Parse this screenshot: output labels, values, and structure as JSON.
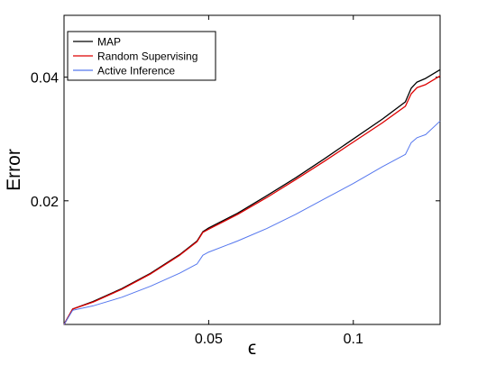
{
  "chart_data": {
    "type": "line",
    "title": "",
    "xlabel": "ϵ",
    "ylabel": "Error",
    "xlim": [
      0,
      0.13
    ],
    "ylim": [
      0,
      0.05
    ],
    "xticks": [
      0.05,
      0.1
    ],
    "xtick_labels": [
      "0.05",
      "0.1"
    ],
    "yticks": [
      0.02,
      0.04
    ],
    "ytick_labels": [
      "0.02",
      "0.04"
    ],
    "grid": false,
    "legend_placement": "top-left",
    "series": [
      {
        "name": "MAP",
        "color": "#000000",
        "x": [
          0,
          0.003,
          0.01,
          0.02,
          0.03,
          0.04,
          0.046,
          0.048,
          0.05,
          0.06,
          0.07,
          0.08,
          0.09,
          0.1,
          0.11,
          0.118,
          0.12,
          0.122,
          0.125,
          0.13
        ],
        "y": [
          0,
          0.0025,
          0.0037,
          0.0058,
          0.0083,
          0.0113,
          0.0135,
          0.015,
          0.0156,
          0.018,
          0.0208,
          0.0237,
          0.0268,
          0.03,
          0.0332,
          0.036,
          0.0382,
          0.0392,
          0.0398,
          0.0412
        ]
      },
      {
        "name": "Random Supervising",
        "color": "#dd0000",
        "x": [
          0,
          0.003,
          0.01,
          0.02,
          0.03,
          0.04,
          0.046,
          0.048,
          0.05,
          0.06,
          0.07,
          0.08,
          0.09,
          0.1,
          0.11,
          0.118,
          0.12,
          0.122,
          0.125,
          0.13
        ],
        "y": [
          0,
          0.0025,
          0.0036,
          0.0057,
          0.0082,
          0.0112,
          0.0134,
          0.0149,
          0.0154,
          0.0178,
          0.0205,
          0.0234,
          0.0264,
          0.0295,
          0.0326,
          0.0353,
          0.0373,
          0.0383,
          0.0388,
          0.0402
        ]
      },
      {
        "name": "Active Inference",
        "color": "#5577ee",
        "x": [
          0,
          0.003,
          0.01,
          0.02,
          0.03,
          0.04,
          0.046,
          0.048,
          0.05,
          0.06,
          0.07,
          0.08,
          0.09,
          0.1,
          0.11,
          0.118,
          0.12,
          0.122,
          0.125,
          0.13
        ],
        "y": [
          0,
          0.0023,
          0.003,
          0.0044,
          0.0062,
          0.0083,
          0.0098,
          0.0112,
          0.0117,
          0.0135,
          0.0155,
          0.0178,
          0.0203,
          0.0228,
          0.0255,
          0.0275,
          0.0294,
          0.0302,
          0.0307,
          0.0329
        ]
      }
    ]
  }
}
